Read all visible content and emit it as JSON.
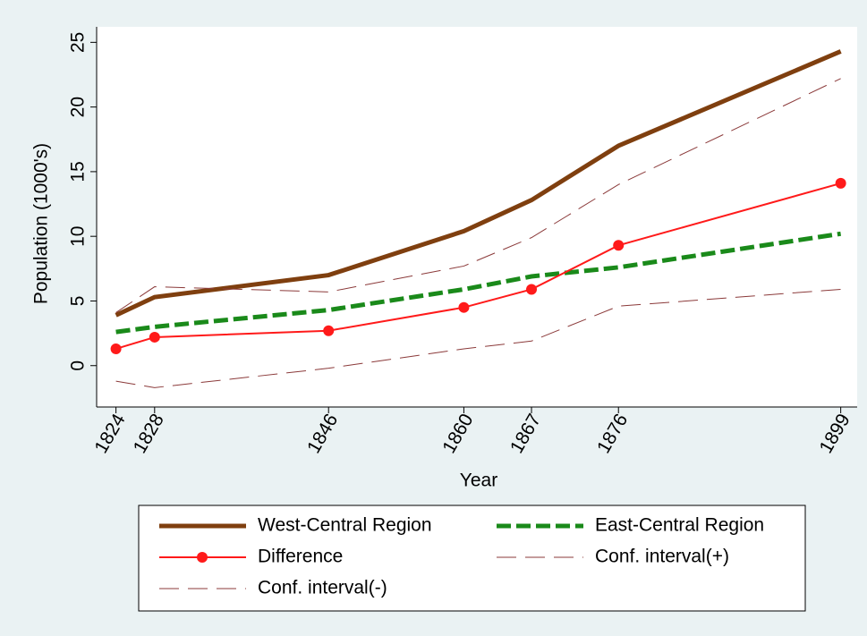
{
  "chart_data": {
    "type": "line",
    "x_label": "Year",
    "y_label": "Population (1000's)",
    "x": [
      1824,
      1828,
      1846,
      1860,
      1867,
      1876,
      1899
    ],
    "xlim": [
      1822,
      1900.7
    ],
    "xticks": [
      1824,
      1828,
      1846,
      1860,
      1867,
      1876,
      1899
    ],
    "ylim": [
      -3.2,
      26.2
    ],
    "yticks": [
      0,
      5,
      10,
      15,
      20,
      25
    ],
    "legend_position": "bottom",
    "series": [
      {
        "name": "West-Central Region",
        "color": "#7f3f0f",
        "width": 5,
        "dash": "solid",
        "marker": false,
        "values": [
          3.9,
          5.3,
          7.0,
          10.4,
          12.8,
          17.0,
          24.3
        ]
      },
      {
        "name": "East-Central Region",
        "color": "#1a8a1a",
        "width": 5,
        "dash": "dashed",
        "marker": false,
        "values": [
          2.6,
          3.0,
          4.3,
          5.9,
          6.9,
          7.6,
          10.2
        ]
      },
      {
        "name": "Difference",
        "color": "#ff1a1a",
        "width": 2,
        "dash": "solid",
        "marker": true,
        "values": [
          1.3,
          2.2,
          2.7,
          4.5,
          5.9,
          9.3,
          14.1
        ]
      },
      {
        "name": "Conf. interval(+)",
        "color": "#8b3a3a",
        "width": 1,
        "dash": "longdash",
        "marker": false,
        "values": [
          4.1,
          6.1,
          5.7,
          7.7,
          9.9,
          14.0,
          22.2
        ]
      },
      {
        "name": "Conf. interval(-)",
        "color": "#8b3a3a",
        "width": 1,
        "dash": "longdash",
        "marker": false,
        "values": [
          -1.2,
          -1.7,
          -0.2,
          1.3,
          1.9,
          4.6,
          5.9
        ]
      }
    ]
  }
}
